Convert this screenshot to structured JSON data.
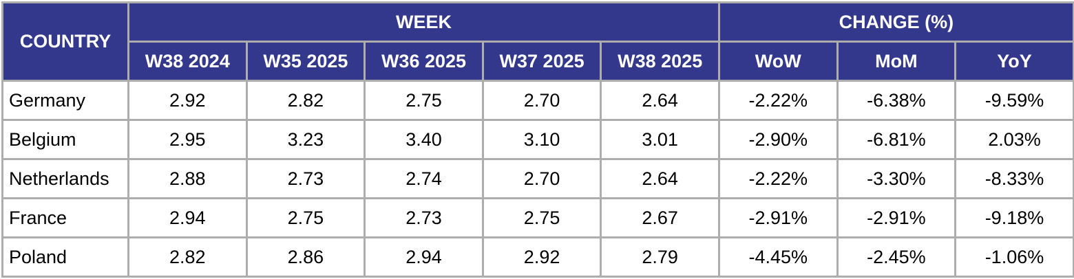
{
  "colors": {
    "header_bg": "#34388C",
    "header_text": "#FFFFFF",
    "border": "#ADADAD",
    "body_text": "#000000",
    "row_bg": "#FFFFFF"
  },
  "table": {
    "country_header": "COUNTRY",
    "week_header": "WEEK",
    "change_header": "CHANGE (%)",
    "week_columns": [
      "W38 2024",
      "W35 2025",
      "W36 2025",
      "W37 2025",
      "W38 2025"
    ],
    "change_columns": [
      "WoW",
      "MoM",
      "YoY"
    ],
    "rows": [
      {
        "country": "Germany",
        "values": [
          "2.92",
          "2.82",
          "2.75",
          "2.70",
          "2.64"
        ],
        "changes": [
          "-2.22%",
          "-6.38%",
          "-9.59%"
        ]
      },
      {
        "country": "Belgium",
        "values": [
          "2.95",
          "3.23",
          "3.40",
          "3.10",
          "3.01"
        ],
        "changes": [
          "-2.90%",
          "-6.81%",
          "2.03%"
        ]
      },
      {
        "country": "Netherlands",
        "values": [
          "2.88",
          "2.73",
          "2.74",
          "2.70",
          "2.64"
        ],
        "changes": [
          "-2.22%",
          "-3.30%",
          "-8.33%"
        ]
      },
      {
        "country": "France",
        "values": [
          "2.94",
          "2.75",
          "2.73",
          "2.75",
          "2.67"
        ],
        "changes": [
          "-2.91%",
          "-2.91%",
          "-9.18%"
        ]
      },
      {
        "country": "Poland",
        "values": [
          "2.82",
          "2.86",
          "2.94",
          "2.92",
          "2.79"
        ],
        "changes": [
          "-4.45%",
          "-2.45%",
          "-1.06%"
        ]
      }
    ]
  },
  "chart_data": {
    "type": "table",
    "title": "",
    "column_groups": [
      {
        "label": "WEEK",
        "columns": [
          "W38 2024",
          "W35 2025",
          "W36 2025",
          "W37 2025",
          "W38 2025"
        ]
      },
      {
        "label": "CHANGE (%)",
        "columns": [
          "WoW",
          "MoM",
          "YoY"
        ]
      }
    ],
    "columns": [
      "COUNTRY",
      "W38 2024",
      "W35 2025",
      "W36 2025",
      "W37 2025",
      "W38 2025",
      "WoW",
      "MoM",
      "YoY"
    ],
    "rows": [
      [
        "Germany",
        2.92,
        2.82,
        2.75,
        2.7,
        2.64,
        -2.22,
        -6.38,
        -9.59
      ],
      [
        "Belgium",
        2.95,
        3.23,
        3.4,
        3.1,
        3.01,
        -2.9,
        -6.81,
        2.03
      ],
      [
        "Netherlands",
        2.88,
        2.73,
        2.74,
        2.7,
        2.64,
        -2.22,
        -3.3,
        -8.33
      ],
      [
        "France",
        2.94,
        2.75,
        2.73,
        2.75,
        2.67,
        -2.91,
        -2.91,
        -9.18
      ],
      [
        "Poland",
        2.82,
        2.86,
        2.94,
        2.92,
        2.79,
        -4.45,
        -2.45,
        -1.06
      ]
    ],
    "change_units": "percent",
    "grid": true,
    "legend_position": "none"
  }
}
